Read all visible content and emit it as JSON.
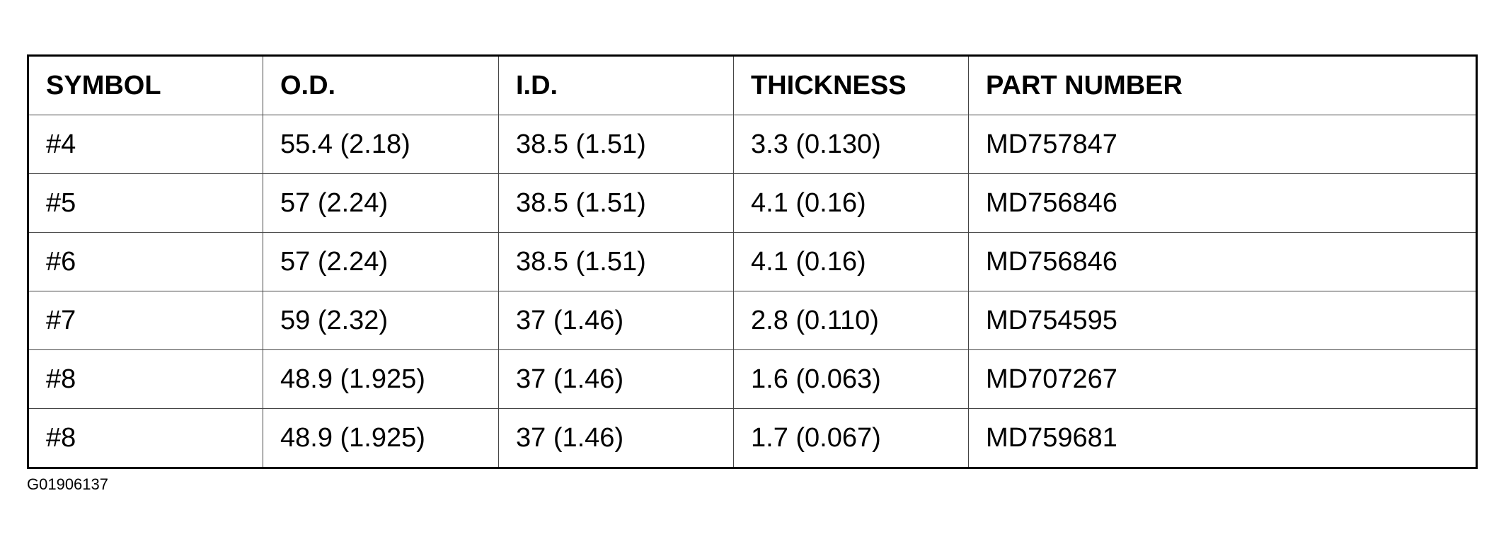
{
  "table": {
    "header": [
      "SYMBOL",
      "O.D.",
      "I.D.",
      "THICKNESS",
      "PART NUMBER"
    ],
    "rows": [
      [
        "#4",
        "55.4 (2.18)",
        "38.5 (1.51)",
        "3.3 (0.130)",
        "MD757847"
      ],
      [
        "#5",
        "57 (2.24)",
        "38.5 (1.51)",
        "4.1 (0.16)",
        "MD756846"
      ],
      [
        "#6",
        "57 (2.24)",
        "38.5 (1.51)",
        "4.1 (0.16)",
        "MD756846"
      ],
      [
        "#7",
        "59 (2.32)",
        "37 (1.46)",
        "2.8 (0.110)",
        "MD754595"
      ],
      [
        "#8",
        "48.9 (1.925)",
        "37 (1.46)",
        "1.6 (0.063)",
        "MD707267"
      ],
      [
        "#8",
        "48.9 (1.925)",
        "37 (1.46)",
        "1.7 (0.067)",
        "MD759681"
      ]
    ]
  },
  "figure_id": "G01906137"
}
